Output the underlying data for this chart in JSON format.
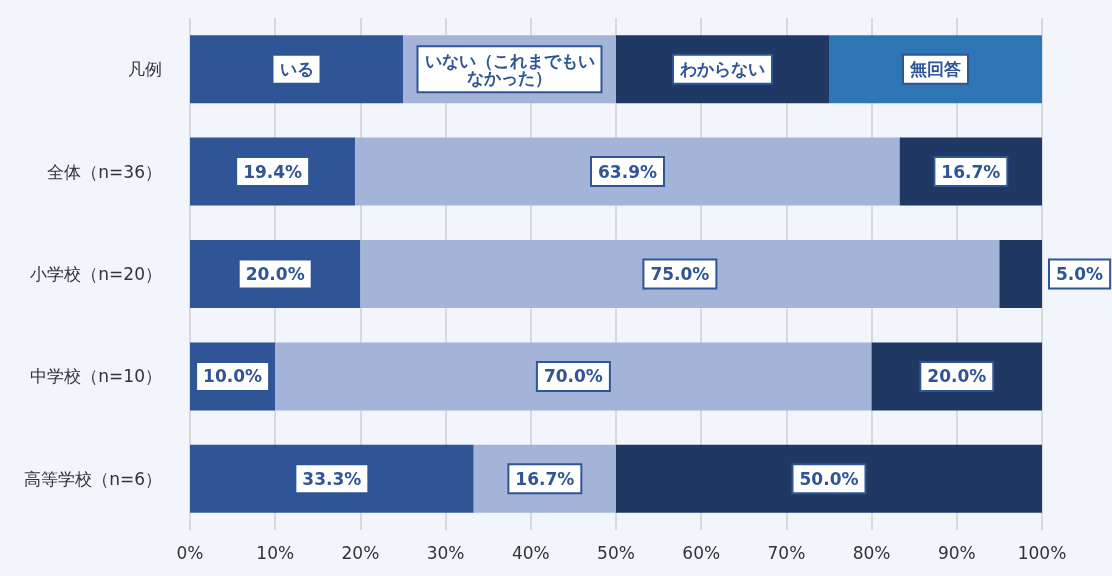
{
  "chart_data": {
    "type": "bar",
    "orientation": "horizontal",
    "stacked": true,
    "categories": [
      "凡例",
      "全体（n=36）",
      "小学校（n=20）",
      "中学校（n=10）",
      "高等学校（n=6）"
    ],
    "series": [
      {
        "name": "いる",
        "color": "#2f5597",
        "values": [
          25,
          19.4,
          20.0,
          10.0,
          33.3
        ],
        "value_labels": [
          null,
          "19.4%",
          "20.0%",
          "10.0%",
          "33.3%"
        ]
      },
      {
        "name": "いない（これまでもいなかった）",
        "color": "#a3b4d8",
        "values": [
          25,
          63.9,
          75.0,
          70.0,
          16.7
        ],
        "value_labels": [
          null,
          "63.9%",
          "75.0%",
          "70.0%",
          "16.7%"
        ]
      },
      {
        "name": "わからない",
        "color": "#1f3864",
        "values": [
          25,
          16.7,
          5.0,
          20.0,
          50.0
        ],
        "value_labels": [
          null,
          "16.7%",
          "5.0%",
          "20.0%",
          "50.0%"
        ]
      },
      {
        "name": "無回答",
        "color": "#2e75b6",
        "values": [
          25,
          null,
          null,
          null,
          null
        ],
        "value_labels": [
          null,
          null,
          null,
          null,
          null
        ]
      }
    ],
    "xlim": [
      0,
      100
    ],
    "xticks": [
      {
        "value": 0,
        "label": "0%"
      },
      {
        "value": 10,
        "label": "10%"
      },
      {
        "value": 20,
        "label": "20%"
      },
      {
        "value": 30,
        "label": "30%"
      },
      {
        "value": 40,
        "label": "40%"
      },
      {
        "value": 50,
        "label": "50%"
      },
      {
        "value": 60,
        "label": "60%"
      },
      {
        "value": 70,
        "label": "70%"
      },
      {
        "value": 80,
        "label": "80%"
      },
      {
        "value": 90,
        "label": "90%"
      },
      {
        "value": 100,
        "label": "100%"
      }
    ],
    "grid": "x",
    "legend": false
  }
}
